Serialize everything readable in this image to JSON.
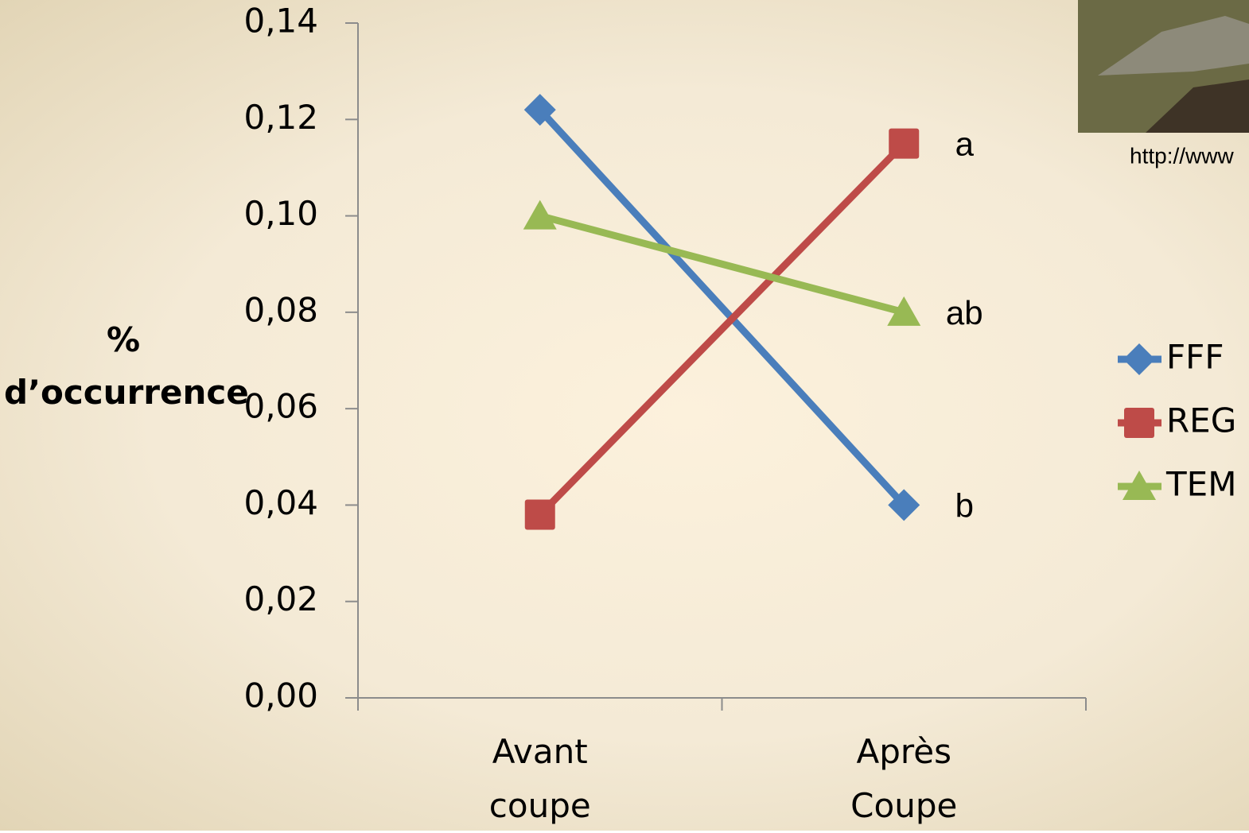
{
  "chart_data": {
    "type": "line",
    "ylabel": "% d’occurrence",
    "categories": [
      "Avant coupe",
      "Après Coupe"
    ],
    "series": [
      {
        "name": "FFF",
        "color": "#4a7ebb",
        "marker": "diamond",
        "values": [
          0.122,
          0.04
        ]
      },
      {
        "name": "REG",
        "color": "#be4b48",
        "marker": "square",
        "values": [
          0.038,
          0.115
        ]
      },
      {
        "name": "TEM",
        "color": "#98b954",
        "marker": "triangle",
        "values": [
          0.1,
          0.08
        ]
      }
    ],
    "annotations": [
      "a",
      "ab",
      "b"
    ],
    "source_text": "http://www",
    "ylim": [
      0,
      0.14
    ],
    "yticks": [
      {
        "value": 0,
        "label": "0,00"
      },
      {
        "value": 0.02,
        "label": "0,02"
      },
      {
        "value": 0.04,
        "label": "0,04"
      },
      {
        "value": 0.06,
        "label": "0,06"
      },
      {
        "value": 0.08,
        "label": "0,08"
      },
      {
        "value": 0.1,
        "label": "0,10"
      },
      {
        "value": 0.12,
        "label": "0,12"
      },
      {
        "value": 0.14,
        "label": "0,14"
      }
    ],
    "legend": "right"
  }
}
